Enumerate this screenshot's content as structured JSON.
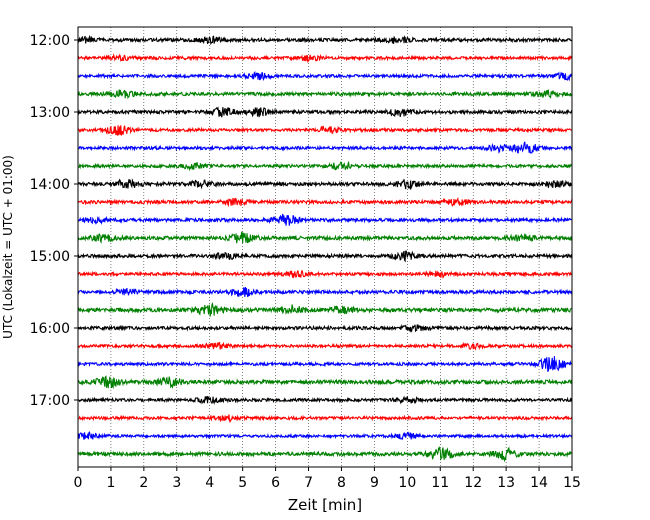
{
  "chart_data": {
    "type": "line",
    "xlabel": "Zeit  [min]",
    "ylabel": "UTC (Lokalzeit = UTC + 01:00)",
    "xlim": [
      0,
      15
    ],
    "x_ticks": [
      0,
      1,
      2,
      3,
      4,
      5,
      6,
      7,
      8,
      9,
      10,
      11,
      12,
      13,
      14,
      15
    ],
    "y_tick_labels": [
      "12:00",
      "13:00",
      "14:00",
      "15:00",
      "16:00",
      "17:00"
    ],
    "grid": "vertical dotted",
    "trace_colors": [
      "#000000",
      "#ff0000",
      "#0000ff",
      "#008000"
    ],
    "traces": [
      {
        "start": "12:00",
        "color": "#000000",
        "amplitude": 1.0,
        "bursts": [
          {
            "at": 0.2,
            "amp": 1.6
          },
          {
            "at": 4.0,
            "amp": 1.4
          },
          {
            "at": 9.7,
            "amp": 1.5
          }
        ]
      },
      {
        "start": "12:15",
        "color": "#ff0000",
        "amplitude": 0.9,
        "bursts": [
          {
            "at": 1.2,
            "amp": 1.5
          },
          {
            "at": 7.0,
            "amp": 1.3
          }
        ]
      },
      {
        "start": "12:30",
        "color": "#0000ff",
        "amplitude": 0.9,
        "bursts": [
          {
            "at": 5.5,
            "amp": 1.5
          },
          {
            "at": 14.8,
            "amp": 1.6
          }
        ]
      },
      {
        "start": "12:45",
        "color": "#008000",
        "amplitude": 1.0,
        "bursts": [
          {
            "at": 1.3,
            "amp": 1.8
          },
          {
            "at": 14.2,
            "amp": 1.4
          }
        ]
      },
      {
        "start": "13:00",
        "color": "#000000",
        "amplitude": 1.0,
        "bursts": [
          {
            "at": 4.4,
            "amp": 2.2
          },
          {
            "at": 5.5,
            "amp": 2.0
          },
          {
            "at": 9.8,
            "amp": 1.8
          }
        ]
      },
      {
        "start": "13:15",
        "color": "#ff0000",
        "amplitude": 0.9,
        "bursts": [
          {
            "at": 1.2,
            "amp": 2.6
          },
          {
            "at": 7.6,
            "amp": 1.4
          }
        ]
      },
      {
        "start": "13:30",
        "color": "#0000ff",
        "amplitude": 0.9,
        "bursts": [
          {
            "at": 12.8,
            "amp": 1.8
          },
          {
            "at": 13.6,
            "amp": 2.8
          }
        ]
      },
      {
        "start": "13:45",
        "color": "#008000",
        "amplitude": 0.9,
        "bursts": [
          {
            "at": 8.0,
            "amp": 1.8
          },
          {
            "at": 3.5,
            "amp": 1.3
          }
        ]
      },
      {
        "start": "14:00",
        "color": "#000000",
        "amplitude": 1.0,
        "bursts": [
          {
            "at": 1.5,
            "amp": 2.4
          },
          {
            "at": 3.7,
            "amp": 1.6
          },
          {
            "at": 10.0,
            "amp": 2.0
          },
          {
            "at": 14.5,
            "amp": 1.8
          }
        ]
      },
      {
        "start": "14:15",
        "color": "#ff0000",
        "amplitude": 1.0,
        "bursts": [
          {
            "at": 4.8,
            "amp": 1.5
          },
          {
            "at": 11.5,
            "amp": 1.3
          }
        ]
      },
      {
        "start": "14:30",
        "color": "#0000ff",
        "amplitude": 1.0,
        "bursts": [
          {
            "at": 6.3,
            "amp": 2.8
          },
          {
            "at": 0.5,
            "amp": 1.4
          }
        ]
      },
      {
        "start": "14:45",
        "color": "#008000",
        "amplitude": 1.1,
        "bursts": [
          {
            "at": 5.0,
            "amp": 2.6
          },
          {
            "at": 0.8,
            "amp": 1.6
          },
          {
            "at": 13.5,
            "amp": 1.5
          }
        ]
      },
      {
        "start": "15:00",
        "color": "#000000",
        "amplitude": 1.0,
        "bursts": [
          {
            "at": 9.9,
            "amp": 2.2
          },
          {
            "at": 4.5,
            "amp": 1.4
          }
        ]
      },
      {
        "start": "15:15",
        "color": "#ff0000",
        "amplitude": 0.9,
        "bursts": [
          {
            "at": 6.6,
            "amp": 1.4
          },
          {
            "at": 11.0,
            "amp": 1.3
          }
        ]
      },
      {
        "start": "15:30",
        "color": "#0000ff",
        "amplitude": 1.0,
        "bursts": [
          {
            "at": 5.0,
            "amp": 2.2
          },
          {
            "at": 1.5,
            "amp": 1.4
          }
        ]
      },
      {
        "start": "15:45",
        "color": "#008000",
        "amplitude": 1.2,
        "bursts": [
          {
            "at": 4.0,
            "amp": 2.8
          },
          {
            "at": 6.5,
            "amp": 2.0
          },
          {
            "at": 8.0,
            "amp": 1.6
          }
        ]
      },
      {
        "start": "16:00",
        "color": "#000000",
        "amplitude": 1.0,
        "bursts": [
          {
            "at": 10.2,
            "amp": 1.4
          }
        ]
      },
      {
        "start": "16:15",
        "color": "#ff0000",
        "amplitude": 0.9,
        "bursts": [
          {
            "at": 4.2,
            "amp": 1.4
          },
          {
            "at": 12.0,
            "amp": 1.2
          }
        ]
      },
      {
        "start": "16:30",
        "color": "#0000ff",
        "amplitude": 0.9,
        "bursts": [
          {
            "at": 14.4,
            "amp": 4.2
          }
        ]
      },
      {
        "start": "16:45",
        "color": "#008000",
        "amplitude": 1.2,
        "bursts": [
          {
            "at": 0.9,
            "amp": 2.6
          },
          {
            "at": 2.8,
            "amp": 2.0
          }
        ]
      },
      {
        "start": "17:00",
        "color": "#000000",
        "amplitude": 0.9,
        "bursts": [
          {
            "at": 4.0,
            "amp": 1.4
          },
          {
            "at": 10.0,
            "amp": 1.3
          }
        ]
      },
      {
        "start": "17:15",
        "color": "#ff0000",
        "amplitude": 0.9,
        "bursts": [
          {
            "at": 4.6,
            "amp": 1.5
          }
        ]
      },
      {
        "start": "17:30",
        "color": "#0000ff",
        "amplitude": 0.8,
        "bursts": [
          {
            "at": 0.3,
            "amp": 1.6
          },
          {
            "at": 10.0,
            "amp": 1.4
          }
        ]
      },
      {
        "start": "17:45",
        "color": "#008000",
        "amplitude": 1.1,
        "bursts": [
          {
            "at": 11.0,
            "amp": 3.2
          },
          {
            "at": 13.0,
            "amp": 2.6
          }
        ]
      }
    ]
  }
}
